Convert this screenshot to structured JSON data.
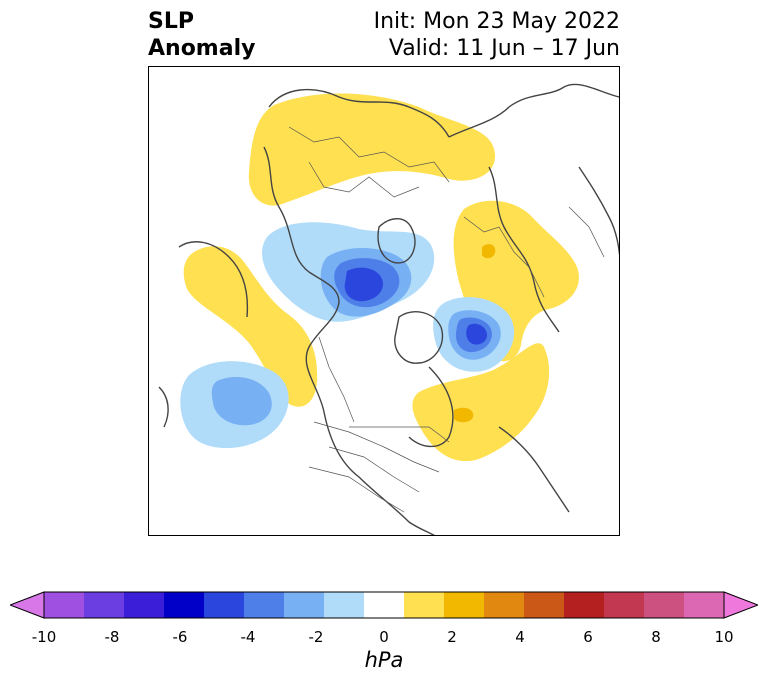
{
  "title": {
    "left_line1": "SLP",
    "left_line2": "Anomaly",
    "right_line1": "Init: Mon 23 May 2022",
    "right_line2": "Valid: 11 Jun – 17 Jun"
  },
  "colorbar": {
    "unit": "hPa",
    "ticks": [
      "-10",
      "-8",
      "-6",
      "-4",
      "-2",
      "0",
      "2",
      "4",
      "6",
      "8",
      "10"
    ],
    "colors": [
      "#d878e8",
      "#a050e0",
      "#6a3ee0",
      "#3a1ed8",
      "#0000c8",
      "#2a46dc",
      "#4e7ee8",
      "#78b0f4",
      "#b0dcfa",
      "#ffffff",
      "#ffe050",
      "#f2b800",
      "#e08810",
      "#cc5818",
      "#b42020",
      "#c23850",
      "#cc5080",
      "#dc68b4",
      "#ee78dc"
    ]
  },
  "map": {
    "features": [
      "north-polar-stereographic",
      "coastlines",
      "country-borders",
      "state-borders"
    ]
  }
}
